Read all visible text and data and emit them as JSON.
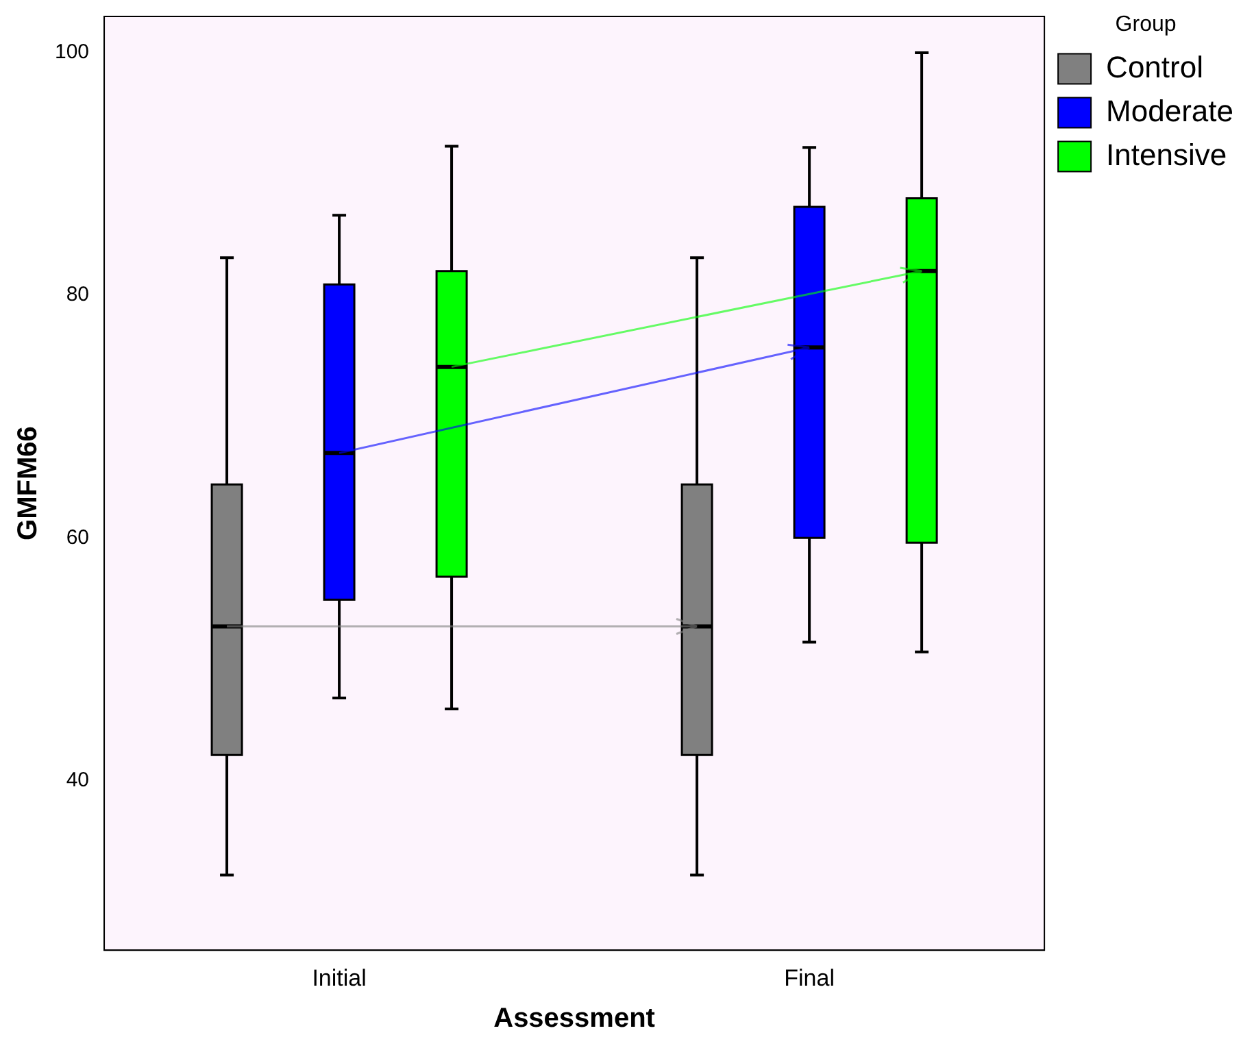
{
  "chart_data": {
    "type": "box",
    "xlabel": "Assessment",
    "ylabel": "GMFM66",
    "legend_title": "Group",
    "legend": "top right",
    "grid": false,
    "categories": [
      "Initial",
      "Final"
    ],
    "ylim": [
      26,
      103
    ],
    "yticks": [
      40,
      60,
      80,
      100
    ],
    "series": [
      {
        "name": "Control",
        "color": "#808080",
        "boxes": [
          {
            "low": 32.2,
            "q1": 42.1,
            "median": 52.7,
            "q3": 64.4,
            "high": 83.1
          },
          {
            "low": 32.2,
            "q1": 42.1,
            "median": 52.7,
            "q3": 64.4,
            "high": 83.1
          }
        ]
      },
      {
        "name": "Moderate",
        "color": "#0000ff",
        "boxes": [
          {
            "low": 46.8,
            "q1": 54.9,
            "median": 67.0,
            "q3": 80.9,
            "high": 86.6
          },
          {
            "low": 51.4,
            "q1": 60.0,
            "median": 75.7,
            "q3": 87.3,
            "high": 92.2
          }
        ]
      },
      {
        "name": "Intensive",
        "color": "#00ff00",
        "boxes": [
          {
            "low": 45.9,
            "q1": 56.8,
            "median": 74.1,
            "q3": 82.0,
            "high": 92.3
          },
          {
            "low": 50.6,
            "q1": 59.6,
            "median": 82.0,
            "q3": 88.0,
            "high": 100.0
          }
        ]
      }
    ]
  }
}
